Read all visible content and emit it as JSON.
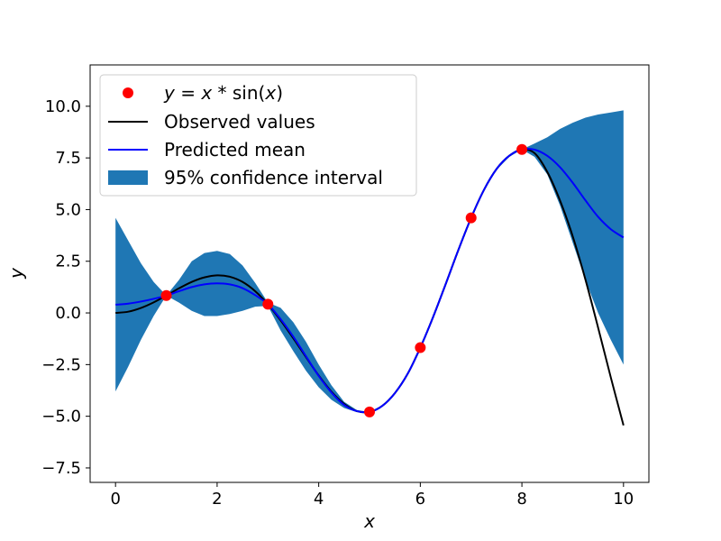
{
  "chart_data": {
    "type": "line",
    "xlabel": "x",
    "ylabel": "y",
    "xlim": [
      -0.5,
      10.5
    ],
    "ylim": [
      -8.2,
      12.0
    ],
    "xticks": [
      0,
      2,
      4,
      6,
      8,
      10
    ],
    "xtick_labels": [
      "0",
      "2",
      "4",
      "6",
      "8",
      "10"
    ],
    "yticks": [
      -7.5,
      -5.0,
      -2.5,
      0.0,
      2.5,
      5.0,
      7.5,
      10.0
    ],
    "ytick_labels": [
      "−7.5",
      "−5.0",
      "−2.5",
      "0.0",
      "2.5",
      "5.0",
      "7.5",
      "10.0"
    ],
    "grid": false,
    "legend_position": "top-left",
    "series": [
      {
        "name": "y = x * sin(x)",
        "kind": "scatter",
        "color": "#ff0000",
        "x": [
          1,
          3,
          5,
          6,
          7,
          8
        ],
        "y": [
          0.84,
          0.42,
          -4.79,
          -1.68,
          4.6,
          7.91
        ]
      },
      {
        "name": "Observed values",
        "kind": "line",
        "color": "#000000",
        "x": [
          0,
          0.25,
          0.5,
          0.75,
          1,
          1.25,
          1.5,
          1.75,
          2,
          2.25,
          2.5,
          2.75,
          3,
          3.25,
          3.5,
          3.75,
          4,
          4.25,
          4.5,
          4.75,
          5,
          5.25,
          5.5,
          5.75,
          6,
          6.25,
          6.5,
          6.75,
          7,
          7.25,
          7.5,
          7.75,
          8,
          8.25,
          8.5,
          8.75,
          9,
          9.25,
          9.5,
          9.75,
          10
        ],
        "y": [
          0.0,
          0.06,
          0.24,
          0.51,
          0.84,
          1.19,
          1.5,
          1.72,
          1.82,
          1.75,
          1.5,
          1.05,
          0.42,
          -0.36,
          -1.23,
          -2.14,
          -3.03,
          -3.81,
          -4.4,
          -4.75,
          -4.79,
          -4.5,
          -3.88,
          -2.95,
          -1.68,
          -0.21,
          1.4,
          3.05,
          4.6,
          5.94,
          6.96,
          7.6,
          7.91,
          7.73,
          6.82,
          5.44,
          3.71,
          1.62,
          -0.71,
          -3.12,
          -5.44
        ]
      },
      {
        "name": "Predicted mean",
        "kind": "line",
        "color": "#0000ff",
        "x": [
          0,
          0.25,
          0.5,
          0.75,
          1,
          1.25,
          1.5,
          1.75,
          2,
          2.25,
          2.5,
          2.75,
          3,
          3.25,
          3.5,
          3.75,
          4,
          4.25,
          4.5,
          4.75,
          5,
          5.25,
          5.5,
          5.75,
          6,
          6.25,
          6.5,
          6.75,
          7,
          7.25,
          7.5,
          7.75,
          8,
          8.25,
          8.5,
          8.75,
          9,
          9.25,
          9.5,
          9.75,
          10
        ],
        "y": [
          0.4,
          0.45,
          0.55,
          0.68,
          0.84,
          1.05,
          1.25,
          1.38,
          1.43,
          1.38,
          1.2,
          0.86,
          0.42,
          -0.3,
          -1.15,
          -2.1,
          -3.05,
          -3.85,
          -4.45,
          -4.75,
          -4.79,
          -4.5,
          -3.88,
          -2.95,
          -1.68,
          -0.21,
          1.4,
          3.05,
          4.6,
          5.94,
          6.96,
          7.6,
          7.91,
          7.9,
          7.6,
          7.05,
          6.3,
          5.45,
          4.65,
          4.05,
          3.65
        ]
      }
    ],
    "confidence_band": {
      "name": "95% confidence interval",
      "color": "#1f77b4",
      "x": [
        0,
        0.25,
        0.5,
        0.75,
        1,
        1.25,
        1.5,
        1.75,
        2,
        2.25,
        2.5,
        2.75,
        3,
        3.25,
        3.5,
        3.75,
        4,
        4.25,
        4.5,
        4.75,
        5,
        5.25,
        5.5,
        5.75,
        6,
        6.25,
        6.5,
        6.75,
        7,
        7.25,
        7.5,
        7.75,
        8,
        8.25,
        8.5,
        8.75,
        9,
        9.25,
        9.5,
        9.75,
        10
      ],
      "upper": [
        4.6,
        3.5,
        2.4,
        1.5,
        0.84,
        1.6,
        2.5,
        2.9,
        3.0,
        2.85,
        2.3,
        1.45,
        0.5,
        0.25,
        -0.45,
        -1.4,
        -2.5,
        -3.5,
        -4.3,
        -4.7,
        -4.79,
        -4.48,
        -3.85,
        -2.9,
        -1.68,
        -0.18,
        1.45,
        3.1,
        4.6,
        5.98,
        7.0,
        7.65,
        7.91,
        8.2,
        8.5,
        8.9,
        9.2,
        9.45,
        9.6,
        9.7,
        9.8
      ],
      "lower": [
        -3.8,
        -2.6,
        -1.3,
        -0.15,
        0.84,
        0.5,
        0.1,
        -0.15,
        -0.15,
        -0.05,
        0.1,
        0.3,
        0.34,
        -0.85,
        -1.85,
        -2.8,
        -3.6,
        -4.2,
        -4.6,
        -4.8,
        -4.79,
        -4.52,
        -3.91,
        -3.0,
        -1.68,
        -0.24,
        1.35,
        3.0,
        4.6,
        5.9,
        6.92,
        7.55,
        7.91,
        7.55,
        6.7,
        5.2,
        3.4,
        1.6,
        0.0,
        -1.3,
        -2.5
      ]
    },
    "legend": [
      {
        "label_parts": [
          "y",
          " = ",
          "x",
          " * sin(",
          "x",
          ")"
        ],
        "marker": "dot",
        "color": "#ff0000"
      },
      {
        "label": "Observed values",
        "marker": "line",
        "color": "#000000"
      },
      {
        "label": "Predicted mean",
        "marker": "line",
        "color": "#0000ff"
      },
      {
        "label": "95% confidence interval",
        "marker": "patch",
        "color": "#1f77b4"
      }
    ]
  }
}
